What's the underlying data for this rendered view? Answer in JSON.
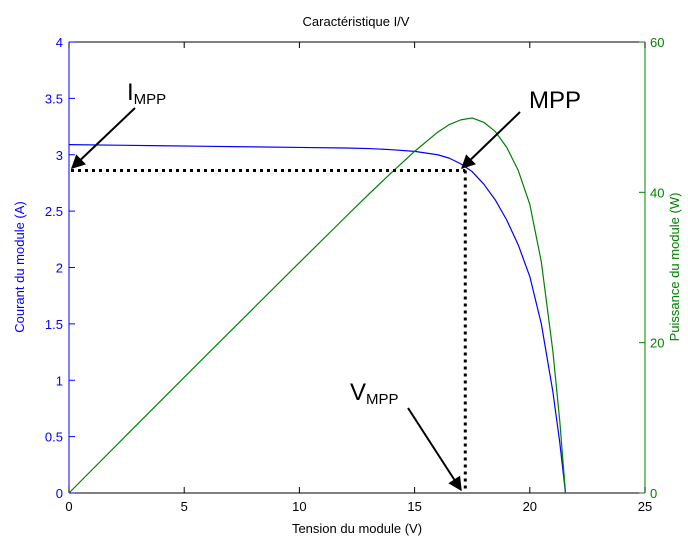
{
  "chart_data": {
    "type": "line",
    "title": "Caractéristique I/V",
    "xlabel": "Tension du module (V)",
    "ylabel_left": "Courant du module (A)",
    "ylabel_right": "Puissance du module (W)",
    "xlim": [
      0,
      25
    ],
    "ylim_left": [
      0,
      4
    ],
    "ylim_right": [
      0,
      60
    ],
    "xticks": [
      "0",
      "5",
      "10",
      "15",
      "20",
      "25"
    ],
    "yticks_left": [
      "0",
      "0.5",
      "1",
      "1.5",
      "2",
      "2.5",
      "3",
      "3.5",
      "4"
    ],
    "yticks_right": [
      "0",
      "20",
      "40",
      "60"
    ],
    "grid": false,
    "colors": {
      "current": "#0000ff",
      "power": "#008000",
      "axes": "#000000",
      "annotation": "#000000"
    },
    "series": [
      {
        "axis": "left",
        "color": "#0000ff",
        "points": [
          [
            0,
            3.09
          ],
          [
            2,
            3.085
          ],
          [
            4,
            3.08
          ],
          [
            6,
            3.075
          ],
          [
            8,
            3.07
          ],
          [
            10,
            3.065
          ],
          [
            12,
            3.06
          ],
          [
            13,
            3.055
          ],
          [
            14,
            3.045
          ],
          [
            15,
            3.03
          ],
          [
            16,
            3.0
          ],
          [
            16.5,
            2.97
          ],
          [
            17,
            2.92
          ],
          [
            17.5,
            2.85
          ],
          [
            18,
            2.74
          ],
          [
            18.5,
            2.6
          ],
          [
            19,
            2.42
          ],
          [
            19.5,
            2.2
          ],
          [
            20,
            1.92
          ],
          [
            20.5,
            1.5
          ],
          [
            21,
            0.9
          ],
          [
            21.3,
            0.45
          ],
          [
            21.55,
            0
          ]
        ]
      },
      {
        "axis": "right",
        "color": "#008000",
        "points": [
          [
            0,
            0
          ],
          [
            2,
            6.17
          ],
          [
            4,
            12.32
          ],
          [
            6,
            18.45
          ],
          [
            8,
            24.56
          ],
          [
            10,
            30.65
          ],
          [
            12,
            36.72
          ],
          [
            13,
            39.72
          ],
          [
            14,
            42.63
          ],
          [
            15,
            45.45
          ],
          [
            16,
            48.0
          ],
          [
            16.5,
            49.0
          ],
          [
            17,
            49.64
          ],
          [
            17.5,
            49.9
          ],
          [
            18,
            49.32
          ],
          [
            18.5,
            48.1
          ],
          [
            19,
            45.98
          ],
          [
            19.5,
            42.9
          ],
          [
            20,
            38.4
          ],
          [
            20.5,
            30.75
          ],
          [
            21,
            18.9
          ],
          [
            21.3,
            9.6
          ],
          [
            21.55,
            0
          ]
        ]
      }
    ],
    "annotations": {
      "mpp_point": {
        "v": 17.2,
        "i": 2.86
      },
      "mpp_label": "MPP",
      "impp_main": "I",
      "impp_sub": "MPP",
      "vmpp_main": "V",
      "vmpp_sub": "MPP"
    }
  }
}
